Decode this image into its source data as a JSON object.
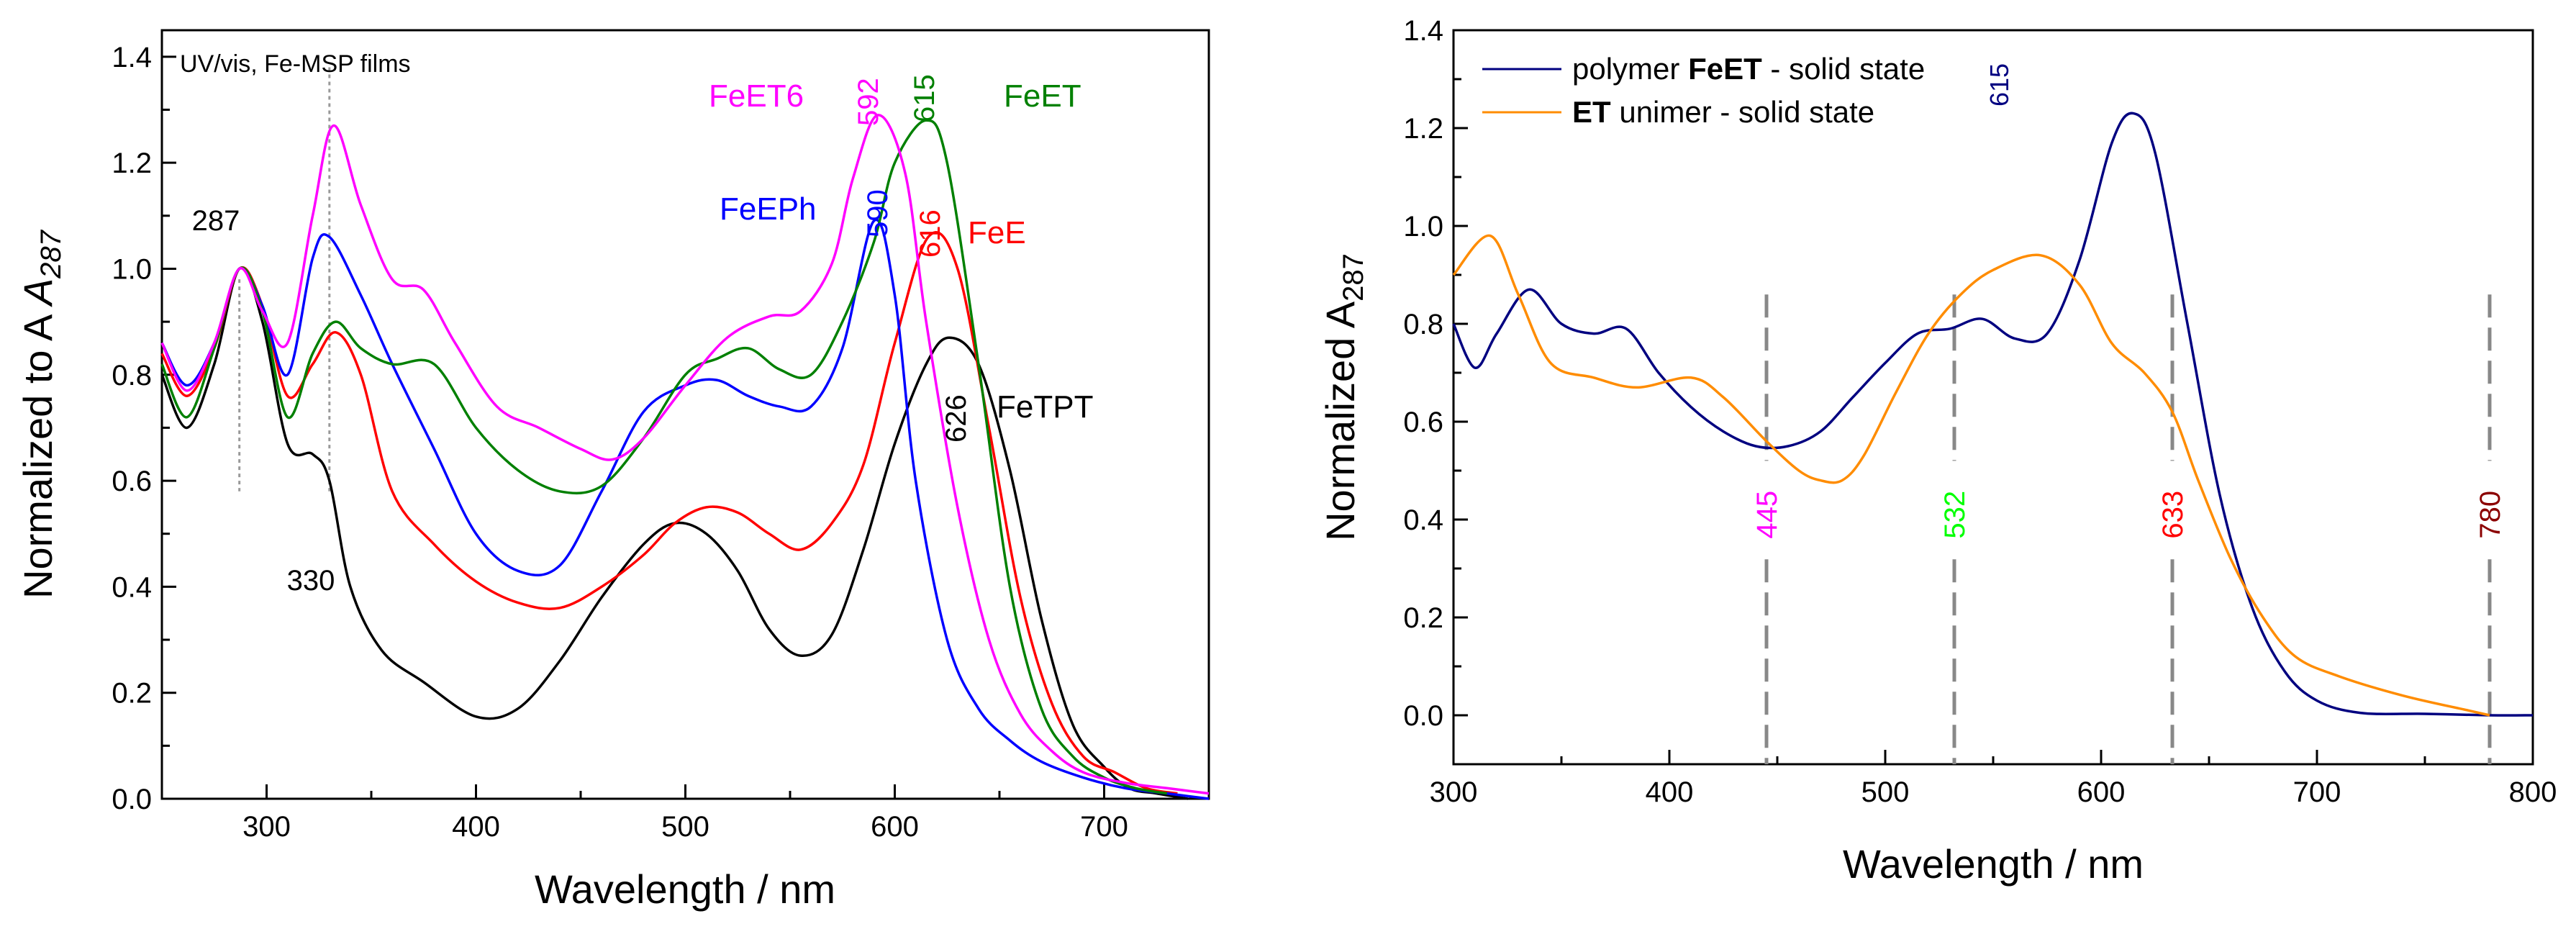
{
  "chart_data": [
    {
      "type": "line",
      "annotation": "UV/vis, Fe-MSP films",
      "xlabel": "Wavelength / nm",
      "ylabel": "Normalized to A",
      "ylabel_sub": "287",
      "xlim": [
        250,
        750
      ],
      "ylim": [
        0.0,
        1.45
      ],
      "xticks": [
        300,
        400,
        500,
        600,
        700
      ],
      "yticks": [
        0.0,
        0.2,
        0.4,
        0.6,
        0.8,
        1.0,
        1.2,
        1.4
      ],
      "x_tick_labels": [
        "300",
        "400",
        "500",
        "600",
        "700"
      ],
      "y_tick_labels": [
        "0.0",
        "0.2",
        "0.4",
        "0.6",
        "0.8",
        "1.0",
        "1.2",
        "1.4"
      ],
      "dashed_markers": [
        287,
        330
      ],
      "series": [
        {
          "name": "FeTPT",
          "color": "#000000",
          "x": [
            250,
            262,
            275,
            287,
            298,
            310,
            322,
            330,
            340,
            355,
            375,
            400,
            420,
            440,
            460,
            480,
            495,
            510,
            525,
            540,
            555,
            570,
            585,
            600,
            615,
            626,
            640,
            655,
            670,
            685,
            700,
            712,
            725,
            740
          ],
          "y": [
            0.8,
            0.7,
            0.82,
            1.0,
            0.9,
            0.67,
            0.65,
            0.6,
            0.4,
            0.28,
            0.22,
            0.155,
            0.17,
            0.26,
            0.38,
            0.48,
            0.52,
            0.5,
            0.43,
            0.32,
            0.27,
            0.31,
            0.47,
            0.67,
            0.82,
            0.87,
            0.82,
            0.62,
            0.34,
            0.14,
            0.06,
            0.02,
            0.01,
            0.0
          ]
        },
        {
          "name": "FeE",
          "color": "#ff0000",
          "x": [
            250,
            262,
            275,
            287,
            298,
            310,
            322,
            333,
            345,
            360,
            380,
            400,
            420,
            440,
            460,
            480,
            495,
            510,
            525,
            540,
            555,
            570,
            585,
            600,
            616,
            630,
            645,
            660,
            675,
            690,
            705,
            720,
            735
          ],
          "y": [
            0.84,
            0.76,
            0.85,
            1.0,
            0.93,
            0.76,
            0.82,
            0.88,
            0.8,
            0.58,
            0.48,
            0.41,
            0.37,
            0.36,
            0.4,
            0.46,
            0.52,
            0.55,
            0.54,
            0.5,
            0.47,
            0.52,
            0.63,
            0.86,
            1.06,
            1.0,
            0.7,
            0.38,
            0.18,
            0.08,
            0.05,
            0.02,
            0.01
          ]
        },
        {
          "name": "FeEPh",
          "color": "#0000ff",
          "x": [
            250,
            262,
            275,
            287,
            298,
            310,
            322,
            330,
            345,
            360,
            380,
            400,
            420,
            440,
            460,
            480,
            500,
            515,
            530,
            545,
            560,
            575,
            590,
            600,
            610,
            625,
            640,
            655,
            670,
            690,
            710,
            730,
            750
          ],
          "y": [
            0.86,
            0.78,
            0.86,
            1.0,
            0.93,
            0.8,
            1.02,
            1.06,
            0.95,
            0.82,
            0.66,
            0.5,
            0.43,
            0.44,
            0.58,
            0.73,
            0.78,
            0.79,
            0.76,
            0.74,
            0.74,
            0.85,
            1.09,
            0.95,
            0.6,
            0.3,
            0.17,
            0.11,
            0.07,
            0.04,
            0.02,
            0.01,
            0.0
          ]
        },
        {
          "name": "FeET",
          "color": "#008000",
          "x": [
            250,
            262,
            275,
            287,
            298,
            310,
            322,
            333,
            345,
            360,
            380,
            400,
            420,
            440,
            460,
            480,
            500,
            515,
            530,
            545,
            560,
            575,
            590,
            600,
            615,
            625,
            640,
            655,
            670,
            685,
            700,
            715,
            730
          ],
          "y": [
            0.82,
            0.72,
            0.85,
            1.0,
            0.92,
            0.72,
            0.84,
            0.9,
            0.85,
            0.82,
            0.82,
            0.7,
            0.62,
            0.58,
            0.59,
            0.68,
            0.8,
            0.83,
            0.85,
            0.81,
            0.8,
            0.9,
            1.05,
            1.2,
            1.28,
            1.2,
            0.82,
            0.4,
            0.17,
            0.08,
            0.04,
            0.02,
            0.01
          ]
        },
        {
          "name": "FeET6",
          "color": "#ff00ff",
          "x": [
            250,
            262,
            275,
            287,
            298,
            310,
            322,
            332,
            345,
            360,
            375,
            390,
            410,
            430,
            450,
            465,
            480,
            500,
            520,
            540,
            555,
            570,
            580,
            592,
            605,
            615,
            630,
            645,
            660,
            675,
            690,
            710,
            730,
            750
          ],
          "y": [
            0.86,
            0.77,
            0.86,
            1.0,
            0.92,
            0.86,
            1.1,
            1.27,
            1.12,
            0.98,
            0.96,
            0.86,
            0.74,
            0.7,
            0.66,
            0.64,
            0.68,
            0.78,
            0.87,
            0.91,
            0.92,
            1.01,
            1.17,
            1.29,
            1.18,
            0.9,
            0.55,
            0.3,
            0.16,
            0.09,
            0.05,
            0.03,
            0.02,
            0.01
          ]
        }
      ],
      "labels": {
        "FeET6": "FeET6",
        "FeEPh": "FeEPh",
        "FeET": "FeET",
        "FeE": "FeE",
        "FeTPT": "FeTPT"
      },
      "peak_labels": [
        "287",
        "330",
        "592",
        "615",
        "590",
        "616",
        "626"
      ]
    },
    {
      "type": "line",
      "xlabel": "Wavelength / nm",
      "ylabel": "Normalized A",
      "ylabel_sub": "287",
      "xlim": [
        300,
        800
      ],
      "ylim": [
        -0.1,
        1.4
      ],
      "xticks": [
        300,
        400,
        500,
        600,
        700,
        800
      ],
      "yticks": [
        0.0,
        0.2,
        0.4,
        0.6,
        0.8,
        1.0,
        1.2,
        1.4
      ],
      "x_tick_labels": [
        "300",
        "400",
        "500",
        "600",
        "700",
        "800"
      ],
      "y_tick_labels": [
        "0.0",
        "0.2",
        "0.4",
        "0.6",
        "0.8",
        "1.0",
        "1.2",
        "1.4"
      ],
      "legend": [
        {
          "pre": "polymer ",
          "bold": "FeET",
          "post": " - solid state",
          "color": "#000080"
        },
        {
          "pre": "",
          "bold": "ET",
          "post": " unimer - solid state",
          "color": "#ff8c00"
        }
      ],
      "series": [
        {
          "name": "polymer FeET - solid state",
          "color": "#000080",
          "x": [
            300,
            310,
            320,
            335,
            350,
            365,
            380,
            395,
            410,
            425,
            440,
            455,
            470,
            485,
            500,
            515,
            530,
            545,
            560,
            575,
            590,
            605,
            615,
            625,
            640,
            655,
            670,
            685,
            700,
            720,
            750,
            780,
            800
          ],
          "y": [
            0.8,
            0.71,
            0.78,
            0.87,
            0.8,
            0.78,
            0.79,
            0.7,
            0.63,
            0.58,
            0.55,
            0.55,
            0.58,
            0.65,
            0.72,
            0.78,
            0.79,
            0.81,
            0.77,
            0.78,
            0.93,
            1.17,
            1.23,
            1.15,
            0.8,
            0.45,
            0.22,
            0.09,
            0.03,
            0.005,
            0.003,
            0.0,
            0.0
          ]
        },
        {
          "name": "ET unimer - solid state",
          "color": "#ff8c00",
          "x": [
            300,
            317,
            330,
            345,
            365,
            385,
            410,
            425,
            445,
            460,
            470,
            480,
            490,
            505,
            520,
            535,
            550,
            572,
            590,
            605,
            620,
            633,
            645,
            660,
            675,
            690,
            710,
            740,
            770,
            780
          ],
          "y": [
            0.9,
            0.98,
            0.86,
            0.72,
            0.69,
            0.67,
            0.69,
            0.65,
            0.56,
            0.5,
            0.48,
            0.48,
            0.53,
            0.66,
            0.78,
            0.86,
            0.91,
            0.94,
            0.88,
            0.76,
            0.7,
            0.62,
            0.48,
            0.32,
            0.2,
            0.12,
            0.08,
            0.04,
            0.01,
            0.0
          ]
        }
      ],
      "markers": [
        {
          "x": 445,
          "label": "445",
          "color": "#ff00ff"
        },
        {
          "x": 532,
          "label": "532",
          "color": "#00ff00"
        },
        {
          "x": 633,
          "label": "633",
          "color": "#ff0000"
        },
        {
          "x": 780,
          "label": "780",
          "color": "#8b0000"
        }
      ],
      "peak_label": "615"
    }
  ]
}
